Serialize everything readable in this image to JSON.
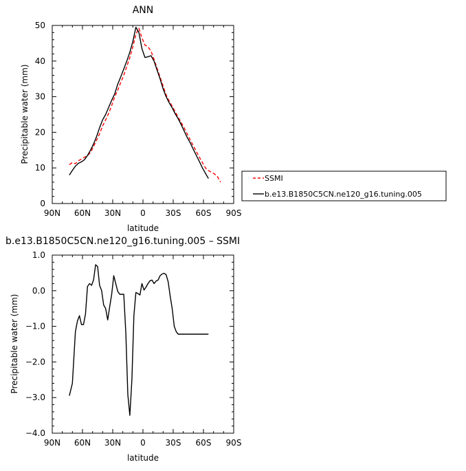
{
  "chart_data": [
    {
      "type": "line",
      "title": "ANN",
      "xlabel": "latitude",
      "ylabel": "Precipitable water  (mm)",
      "xlim": [
        90,
        -90
      ],
      "ylim": [
        0,
        50
      ],
      "xticks": [
        90,
        60,
        30,
        0,
        -30,
        -60,
        -90
      ],
      "xtick_labels": [
        "90N",
        "60N",
        "30N",
        "0",
        "30S",
        "60S",
        "90S"
      ],
      "yticks": [
        0,
        10,
        20,
        30,
        40,
        50
      ],
      "ytick_labels": [
        "0",
        "10",
        "20",
        "30",
        "40",
        "50"
      ],
      "legend_position": "right",
      "series": [
        {
          "name": "SSMI",
          "color": "#ff0000",
          "dash": "dashed",
          "x": [
            73,
            70,
            67,
            64,
            61,
            58,
            55,
            52,
            49,
            46,
            43,
            40,
            37,
            34,
            31,
            28,
            25,
            22,
            19,
            16,
            13,
            10,
            7,
            4,
            1,
            -2,
            -5,
            -8,
            -11,
            -14,
            -17,
            -20,
            -23,
            -26,
            -29,
            -32,
            -35,
            -38,
            -41,
            -44,
            -47,
            -50,
            -53,
            -56,
            -59,
            -62,
            -65,
            -68,
            -71,
            -74,
            -77
          ],
          "y": [
            10.9,
            11.5,
            11.2,
            12.0,
            12.5,
            13.0,
            13.5,
            14.3,
            16.0,
            17.8,
            19.6,
            21.8,
            23.5,
            25.3,
            27.5,
            30.0,
            31.8,
            34.0,
            36.0,
            38.5,
            41.0,
            44.0,
            47.5,
            49.2,
            46.5,
            44.5,
            44.0,
            42.8,
            40.5,
            38.0,
            35.5,
            33.0,
            30.5,
            28.8,
            27.3,
            25.8,
            24.2,
            22.7,
            21.2,
            19.5,
            17.8,
            16.2,
            14.6,
            13.0,
            11.5,
            10.0,
            9.2,
            8.8,
            8.3,
            7.5,
            6.0
          ]
        },
        {
          "name": "b.e13.B1850C5CN.ne120_g16.tuning.005",
          "color": "#000000",
          "dash": "solid",
          "x": [
            73,
            70,
            67,
            64,
            61,
            58,
            55,
            52,
            49,
            46,
            43,
            40,
            37,
            34,
            31,
            28,
            25,
            22,
            19,
            16,
            13,
            10,
            7,
            4,
            1,
            -2,
            -5,
            -8,
            -11,
            -14,
            -17,
            -20,
            -23,
            -26,
            -29,
            -32,
            -35,
            -38,
            -41,
            -44,
            -47,
            -50,
            -53,
            -56,
            -59,
            -62,
            -65
          ],
          "y": [
            8.0,
            9.3,
            10.5,
            11.3,
            11.7,
            12.3,
            13.5,
            15.0,
            16.7,
            18.8,
            21.3,
            23.5,
            25.0,
            27.0,
            29.0,
            30.8,
            33.5,
            35.6,
            37.8,
            40.0,
            42.5,
            45.5,
            49.5,
            48.0,
            43.5,
            41.0,
            41.2,
            41.5,
            40.0,
            37.5,
            35.0,
            32.2,
            30.0,
            28.3,
            26.9,
            25.2,
            23.8,
            22.1,
            20.3,
            18.5,
            17.0,
            15.2,
            13.5,
            11.8,
            10.0,
            8.5,
            7.0
          ]
        }
      ]
    },
    {
      "type": "line",
      "title": "b.e13.B1850C5CN.ne120_g16.tuning.005 – SSMI",
      "xlabel": "latitude",
      "ylabel": "Precipitable water  (mm)",
      "xlim": [
        90,
        -90
      ],
      "ylim": [
        -4,
        1
      ],
      "xticks": [
        90,
        60,
        30,
        0,
        -30,
        -60,
        -90
      ],
      "xtick_labels": [
        "90N",
        "60N",
        "30N",
        "0",
        "30S",
        "60S",
        "90S"
      ],
      "yticks": [
        -4,
        -3,
        -2,
        -1,
        0,
        1
      ],
      "ytick_labels": [
        "−4.0",
        "−3.0",
        "−2.0",
        "−1.0",
        "0.0",
        "1.0"
      ],
      "series": [
        {
          "color": "#000000",
          "x": [
            73,
            70,
            67,
            65,
            63,
            61,
            59,
            57,
            55,
            53,
            51,
            49,
            47,
            45,
            43,
            41,
            39,
            37,
            35,
            33,
            31,
            29,
            27,
            25,
            23,
            21,
            19,
            17,
            15,
            13,
            11,
            9,
            7,
            5,
            3,
            1,
            -1,
            -3,
            -5,
            -7,
            -9,
            -11,
            -13,
            -15,
            -17,
            -19,
            -21,
            -23,
            -25,
            -27,
            -29,
            -31,
            -33,
            -35,
            -37,
            -39,
            -41,
            -43,
            -45,
            -47,
            -49,
            -51,
            -53,
            -55,
            -57,
            -59,
            -61,
            -63,
            -65
          ],
          "y": [
            -2.95,
            -2.6,
            -1.15,
            -0.85,
            -0.7,
            -0.95,
            -0.95,
            -0.65,
            0.12,
            0.2,
            0.15,
            0.3,
            0.73,
            0.68,
            0.15,
            0.0,
            -0.4,
            -0.5,
            -0.82,
            -0.45,
            -0.1,
            0.42,
            0.2,
            -0.02,
            -0.1,
            -0.1,
            -0.1,
            -1.2,
            -2.92,
            -3.5,
            -2.5,
            -0.7,
            -0.05,
            -0.08,
            -0.12,
            0.2,
            0.02,
            0.1,
            0.2,
            0.28,
            0.3,
            0.2,
            0.27,
            0.3,
            0.42,
            0.47,
            0.49,
            0.45,
            0.25,
            -0.15,
            -0.5,
            -1.0,
            -1.15,
            -1.22,
            -1.22,
            -1.22,
            -1.22,
            -1.22,
            -1.22,
            -1.22,
            -1.22,
            -1.22,
            -1.22,
            -1.22,
            -1.22,
            -1.22,
            -1.22,
            -1.22,
            -1.22
          ]
        }
      ]
    }
  ]
}
